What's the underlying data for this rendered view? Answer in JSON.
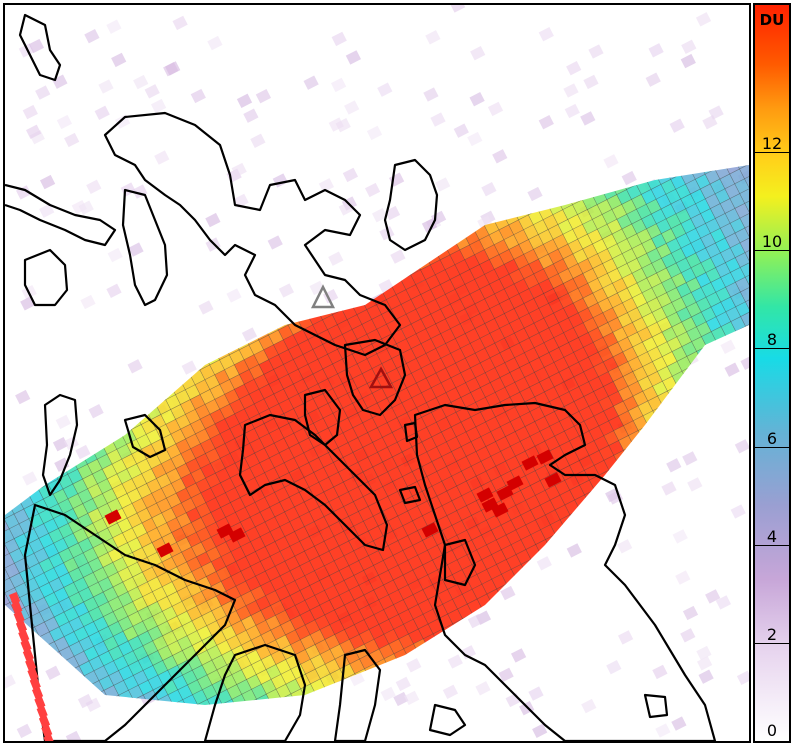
{
  "map": {
    "coastline_color": "#000000",
    "volcano_primary_color": "#a01010",
    "volcano_secondary_color": "#808080",
    "volcano_icon": "triangle-outline-icon",
    "swath_edge_color": "#ff4040"
  },
  "colorbar": {
    "unit": "DU",
    "ticks": [
      "0",
      "2",
      "4",
      "6",
      "8",
      "10",
      "12"
    ],
    "min": 0,
    "max": 15
  }
}
